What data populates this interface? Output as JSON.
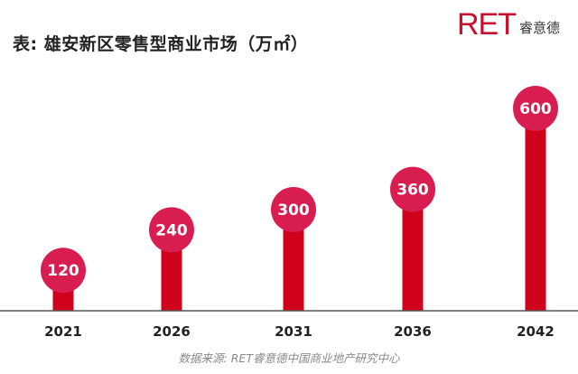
{
  "header": {
    "title": "表: 雄安新区零售型商业市场（万㎡）",
    "logo_mark": "RET",
    "logo_text": "睿意德"
  },
  "footer": {
    "source": "数据来源: RET睿意德中国商业地产研究中心"
  },
  "colors": {
    "bar": "#d0021b",
    "bubble": "#d81e50",
    "axis": "#555555",
    "accent": "#c8102e"
  },
  "chart_data": {
    "type": "bar",
    "title": "表: 雄安新区零售型商业市场（万㎡）",
    "categories": [
      "2021",
      "2026",
      "2031",
      "2036",
      "2042"
    ],
    "values": [
      120,
      240,
      300,
      360,
      600
    ],
    "data_labels": [
      "120",
      "240",
      "300",
      "360",
      "600"
    ],
    "xlabel": "",
    "ylabel": "",
    "ylim": [
      0,
      650
    ],
    "grid": false,
    "legend": "none"
  }
}
